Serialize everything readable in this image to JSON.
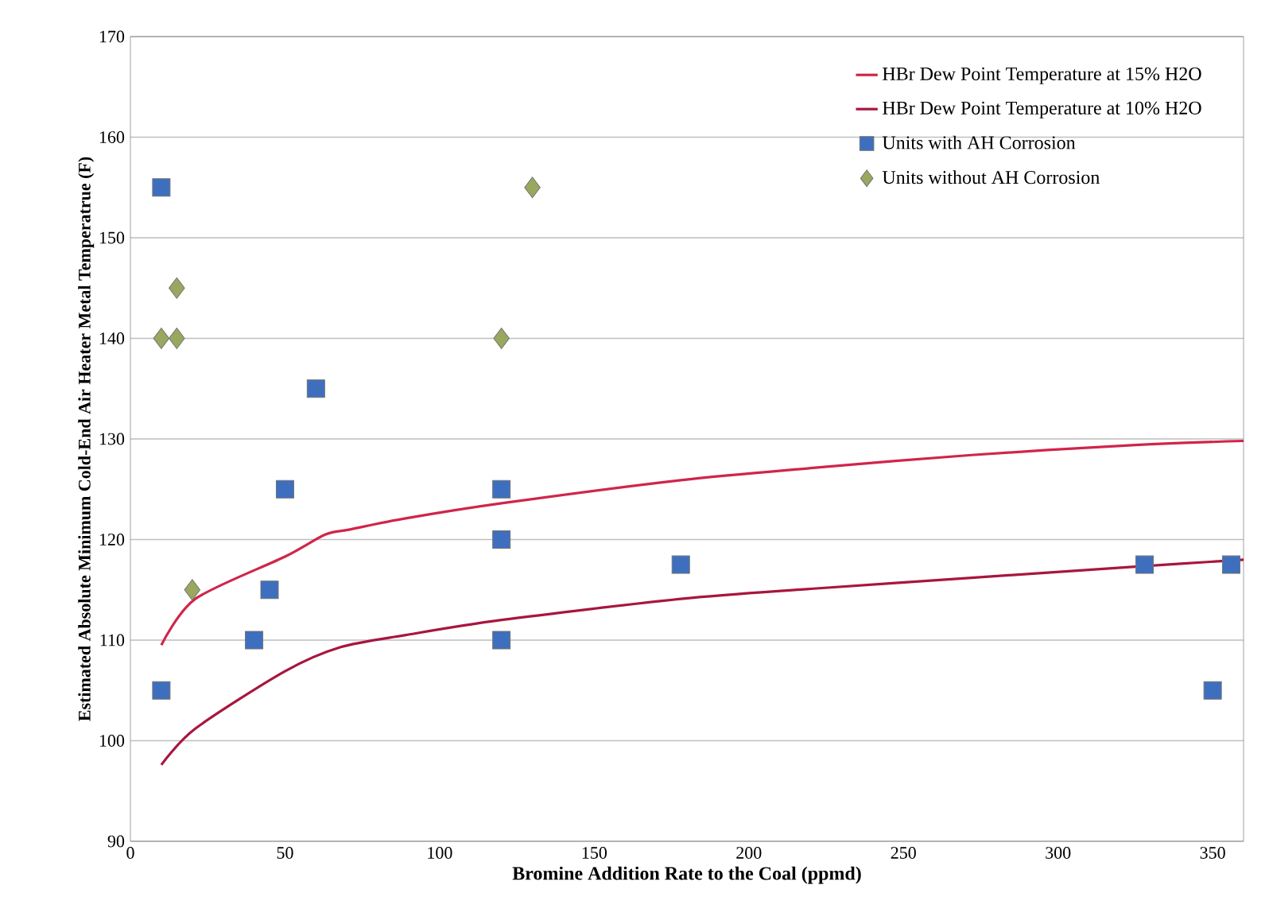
{
  "chart_data": {
    "type": "scatter",
    "xlabel": "Bromine Addition Rate to the Coal (ppmd)",
    "ylabel": "Estimated Absolute Minimum Cold-End Air Heater  Metal Temperatrue (F)",
    "xlim": [
      0,
      360
    ],
    "ylim": [
      90,
      170
    ],
    "xticks": [
      0,
      50,
      100,
      150,
      200,
      250,
      300,
      350
    ],
    "yticks": [
      90,
      100,
      110,
      120,
      130,
      140,
      150,
      160,
      170
    ],
    "grid": "y",
    "legend": "top right",
    "series": [
      {
        "name": "HBr Dew Point Temperature at 15% H2O",
        "type": "line",
        "color": "#d0254a",
        "marker": "none",
        "x": [
          10,
          21,
          50,
          63,
          71,
          89,
          120,
          178,
          220,
          272,
          325,
          360
        ],
        "values": [
          109.5,
          114.1,
          118.3,
          120.5,
          121.0,
          122.1,
          123.6,
          125.9,
          127.1,
          128.4,
          129.4,
          129.8
        ]
      },
      {
        "name": "HBr Dew Point Temperature at 10% H2O",
        "type": "line",
        "color": "#a8163e",
        "marker": "none",
        "x": [
          10,
          21,
          50,
          68,
          89,
          120,
          178,
          220,
          272,
          325,
          360
        ],
        "values": [
          97.6,
          101.2,
          106.9,
          109.3,
          110.5,
          112.0,
          114.1,
          115.1,
          116.2,
          117.3,
          118.0
        ]
      },
      {
        "name": "Units with AH Corrosion",
        "color": "#3e6fbf",
        "marker": "square",
        "x": [
          10,
          10,
          40,
          45,
          50,
          60,
          120,
          120,
          120,
          178,
          328,
          350,
          356
        ],
        "values": [
          155,
          105,
          110,
          115,
          125,
          135,
          125,
          120,
          110,
          117.5,
          117.5,
          105,
          117.5
        ]
      },
      {
        "name": "Units without AH Corrosion",
        "color": "#98a85e",
        "marker": "diamond",
        "x": [
          10,
          15,
          15,
          20,
          120,
          130
        ],
        "values": [
          140,
          140,
          145,
          115,
          140,
          155
        ]
      }
    ]
  }
}
